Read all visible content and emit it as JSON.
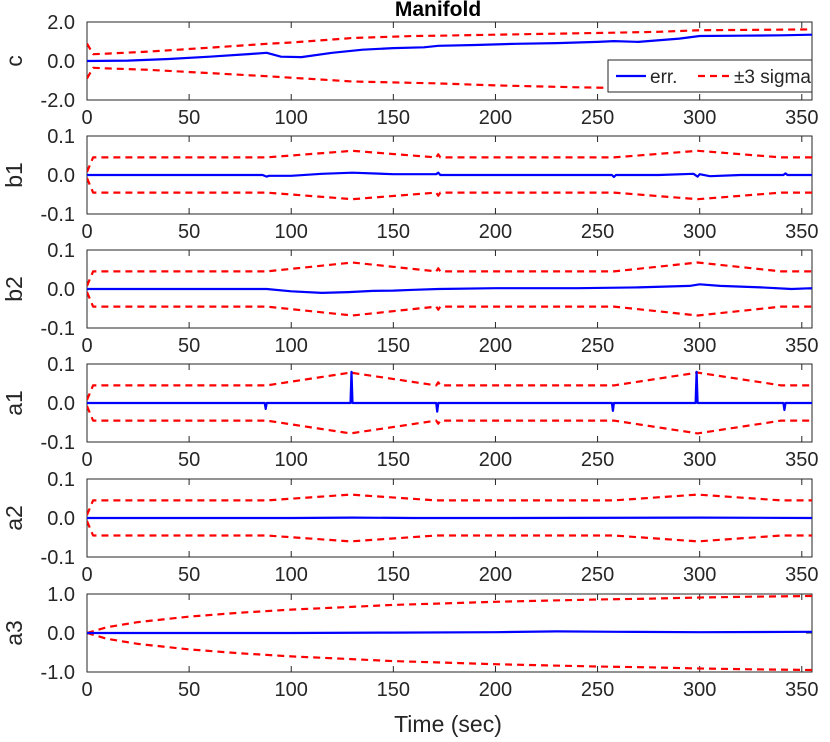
{
  "chart_data": {
    "type": "line",
    "title": "Manifold",
    "xlabel": "Time (sec)",
    "xlim": [
      0,
      355
    ],
    "xticks": [
      "0",
      "50",
      "100",
      "150",
      "200",
      "250",
      "300",
      "350"
    ],
    "legend": {
      "placement": "bottom-right of first panel",
      "entries": [
        {
          "label": "err.",
          "color": "#0000ff",
          "dash": "solid"
        },
        {
          "label": "±3 sigma",
          "color": "#ff0000",
          "dash": "dashed"
        }
      ]
    },
    "colors": {
      "err": "#0000ff",
      "sigma": "#ff0000"
    },
    "panels": [
      {
        "ylabel": "c",
        "ylim": [
          -2.0,
          2.0
        ],
        "yticks": [
          "2.0",
          "0.0",
          "-2.0"
        ],
        "yticks_values": [
          2.0,
          0.0,
          -2.0
        ],
        "err": {
          "x": [
            0,
            20,
            40,
            60,
            80,
            88,
            95,
            105,
            120,
            135,
            150,
            165,
            172,
            190,
            210,
            230,
            250,
            258,
            270,
            290,
            300,
            320,
            340,
            355
          ],
          "y": [
            0.0,
            0.02,
            0.1,
            0.22,
            0.36,
            0.42,
            0.22,
            0.2,
            0.42,
            0.58,
            0.66,
            0.7,
            0.78,
            0.82,
            0.88,
            0.92,
            0.98,
            1.02,
            0.98,
            1.15,
            1.28,
            1.3,
            1.32,
            1.35
          ]
        },
        "sigma_upper": {
          "x": [
            0,
            3,
            10,
            30,
            60,
            88,
            100,
            130,
            160,
            172,
            200,
            240,
            258,
            280,
            300,
            330,
            355
          ],
          "y": [
            0.9,
            0.35,
            0.38,
            0.48,
            0.68,
            0.88,
            0.95,
            1.18,
            1.28,
            1.3,
            1.35,
            1.42,
            1.45,
            1.5,
            1.58,
            1.6,
            1.62
          ]
        },
        "sigma_lower": {
          "x": [
            0,
            3,
            10,
            30,
            60,
            88,
            130,
            172,
            200,
            240,
            258,
            300,
            330,
            355
          ],
          "y": [
            -0.9,
            -0.35,
            -0.38,
            -0.45,
            -0.62,
            -0.78,
            -1.05,
            -1.15,
            -1.25,
            -1.35,
            -1.38,
            -1.45,
            -1.5,
            -1.52
          ]
        }
      },
      {
        "ylabel": "b1",
        "ylim": [
          -0.1,
          0.1
        ],
        "yticks": [
          "0.1",
          "0.0",
          "-0.1"
        ],
        "yticks_values": [
          0.1,
          0.0,
          -0.1
        ],
        "err": {
          "x": [
            0,
            40,
            86,
            88,
            89,
            100,
            115,
            130,
            150,
            171,
            172,
            173,
            200,
            257,
            258,
            259,
            280,
            297,
            299,
            300,
            305,
            320,
            341,
            342,
            343,
            355
          ],
          "y": [
            0.0,
            0.0,
            0.0,
            -0.004,
            -0.002,
            -0.002,
            0.003,
            0.006,
            0.002,
            0.002,
            0.006,
            0.0,
            0.0,
            0.0,
            -0.005,
            0.0,
            0.0,
            0.003,
            -0.004,
            0.002,
            -0.003,
            0.0,
            0.0,
            0.004,
            0.0,
            0.0
          ]
        },
        "sigma_upper": {
          "x": [
            0,
            3,
            88,
            130,
            171,
            172,
            173,
            258,
            299,
            340,
            355
          ],
          "y": [
            0.008,
            0.045,
            0.045,
            0.062,
            0.045,
            0.053,
            0.045,
            0.045,
            0.062,
            0.045,
            0.045
          ]
        },
        "sigma_lower": {
          "x": [
            0,
            3,
            88,
            130,
            171,
            172,
            173,
            258,
            299,
            340,
            355
          ],
          "y": [
            -0.008,
            -0.045,
            -0.045,
            -0.062,
            -0.045,
            -0.053,
            -0.045,
            -0.045,
            -0.062,
            -0.045,
            -0.045
          ]
        }
      },
      {
        "ylabel": "b2",
        "ylim": [
          -0.1,
          0.1
        ],
        "yticks": [
          "0.1",
          "0.0",
          "-0.1"
        ],
        "yticks_values": [
          0.1,
          0.0,
          -0.1
        ],
        "err": {
          "x": [
            0,
            40,
            88,
            100,
            115,
            128,
            140,
            150,
            160,
            172,
            200,
            240,
            270,
            295,
            300,
            310,
            330,
            345,
            355
          ],
          "y": [
            0.0,
            0.0,
            0.0,
            -0.006,
            -0.01,
            -0.008,
            -0.005,
            -0.004,
            -0.002,
            0.0,
            0.002,
            0.002,
            0.004,
            0.008,
            0.012,
            0.008,
            0.004,
            0.0,
            0.002
          ]
        },
        "sigma_upper": {
          "x": [
            0,
            3,
            88,
            130,
            171,
            172,
            173,
            258,
            299,
            340,
            355
          ],
          "y": [
            0.008,
            0.045,
            0.045,
            0.068,
            0.045,
            0.053,
            0.045,
            0.045,
            0.068,
            0.045,
            0.045
          ]
        },
        "sigma_lower": {
          "x": [
            0,
            3,
            88,
            130,
            171,
            172,
            173,
            258,
            299,
            340,
            355
          ],
          "y": [
            -0.008,
            -0.045,
            -0.045,
            -0.068,
            -0.045,
            -0.053,
            -0.045,
            -0.045,
            -0.068,
            -0.045,
            -0.045
          ]
        }
      },
      {
        "ylabel": "a1",
        "ylim": [
          -0.1,
          0.1
        ],
        "yticks": [
          "0.1",
          "0.0",
          "-0.1"
        ],
        "yticks_values": [
          0.1,
          0.0,
          -0.1
        ],
        "err": {
          "x": [
            0,
            87,
            87.5,
            88,
            128,
            129,
            129.5,
            130,
            170,
            171,
            171.5,
            172,
            256,
            257,
            257.5,
            258,
            297,
            298,
            298.5,
            299,
            340,
            341,
            341.5,
            342,
            355
          ],
          "y": [
            0.0,
            0.0,
            -0.015,
            0.0,
            0.0,
            0.0,
            0.08,
            0.0,
            0.0,
            0.0,
            -0.022,
            0.0,
            0.0,
            0.0,
            -0.02,
            0.0,
            0.0,
            0.0,
            0.08,
            0.0,
            0.0,
            0.0,
            -0.018,
            0.0,
            0.0
          ]
        },
        "sigma_upper": {
          "x": [
            0,
            3,
            88,
            129,
            171,
            172,
            173,
            258,
            299,
            340,
            355
          ],
          "y": [
            0.008,
            0.045,
            0.045,
            0.078,
            0.045,
            0.053,
            0.045,
            0.045,
            0.078,
            0.045,
            0.045
          ]
        },
        "sigma_lower": {
          "x": [
            0,
            3,
            88,
            129,
            171,
            172,
            173,
            258,
            299,
            340,
            355
          ],
          "y": [
            -0.008,
            -0.045,
            -0.045,
            -0.078,
            -0.045,
            -0.053,
            -0.045,
            -0.045,
            -0.078,
            -0.045,
            -0.045
          ]
        }
      },
      {
        "ylabel": "a2",
        "ylim": [
          -0.1,
          0.1
        ],
        "yticks": [
          "0.1",
          "0.0",
          "-0.1"
        ],
        "yticks_values": [
          0.1,
          0.0,
          -0.1
        ],
        "err": {
          "x": [
            0,
            100,
            130,
            160,
            200,
            300,
            355
          ],
          "y": [
            0.0,
            0.0,
            0.001,
            0.0,
            0.0,
            0.001,
            0.0
          ]
        },
        "sigma_upper": {
          "x": [
            0,
            3,
            88,
            129,
            171,
            258,
            299,
            340,
            355
          ],
          "y": [
            0.008,
            0.045,
            0.045,
            0.06,
            0.045,
            0.045,
            0.06,
            0.045,
            0.045
          ]
        },
        "sigma_lower": {
          "x": [
            0,
            3,
            88,
            129,
            171,
            258,
            299,
            340,
            355
          ],
          "y": [
            -0.008,
            -0.045,
            -0.045,
            -0.06,
            -0.045,
            -0.045,
            -0.06,
            -0.045,
            -0.045
          ]
        }
      },
      {
        "ylabel": "a3",
        "ylim": [
          -1.0,
          1.0
        ],
        "yticks": [
          "1.0",
          "0.0",
          "-1.0"
        ],
        "yticks_values": [
          1.0,
          0.0,
          -1.0
        ],
        "err": {
          "x": [
            0,
            50,
            100,
            150,
            200,
            230,
            260,
            300,
            355
          ],
          "y": [
            0.0,
            0.0,
            0.0,
            0.01,
            0.02,
            0.04,
            0.03,
            0.02,
            0.03
          ]
        },
        "sigma_upper": {
          "x": [
            0,
            10,
            25,
            50,
            75,
            100,
            125,
            150,
            175,
            200,
            225,
            250,
            275,
            300,
            325,
            355
          ],
          "y": [
            0.0,
            0.15,
            0.28,
            0.42,
            0.52,
            0.6,
            0.66,
            0.72,
            0.76,
            0.8,
            0.83,
            0.86,
            0.88,
            0.91,
            0.93,
            0.95
          ]
        },
        "sigma_lower": {
          "x": [
            0,
            10,
            25,
            50,
            75,
            100,
            125,
            150,
            175,
            200,
            225,
            250,
            275,
            300,
            325,
            355
          ],
          "y": [
            0.0,
            -0.15,
            -0.28,
            -0.42,
            -0.52,
            -0.6,
            -0.66,
            -0.72,
            -0.76,
            -0.8,
            -0.83,
            -0.86,
            -0.88,
            -0.91,
            -0.93,
            -0.95
          ]
        }
      }
    ]
  }
}
